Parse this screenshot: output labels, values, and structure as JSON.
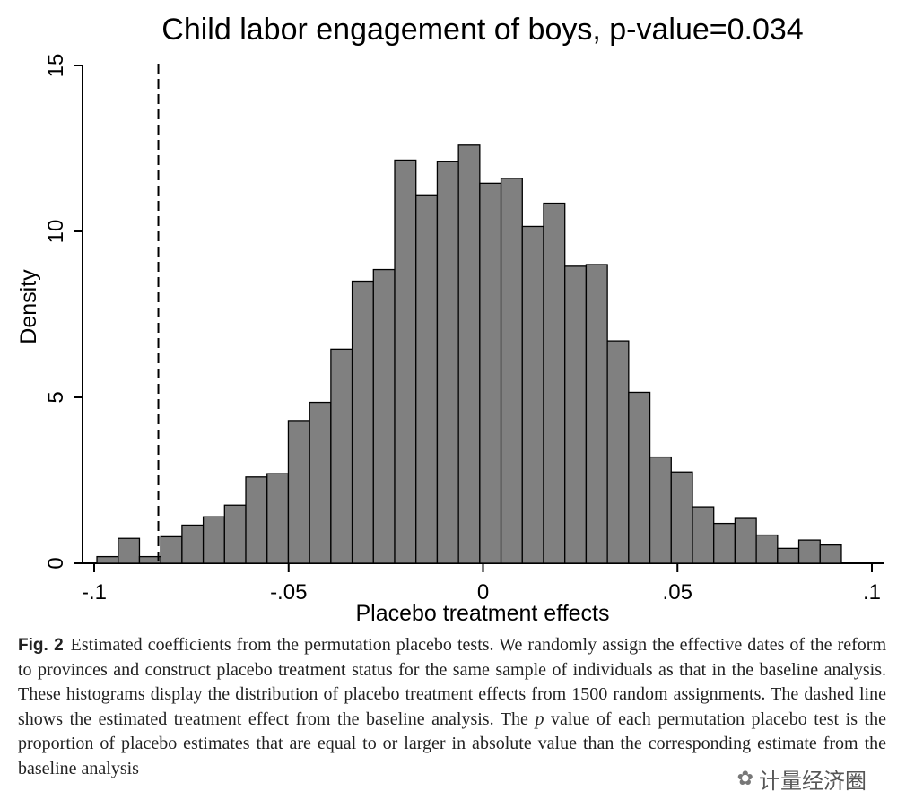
{
  "chart_data": {
    "type": "bar",
    "title": "Child labor engagement of boys, p-value=0.034",
    "xlabel": "Placebo treatment effects",
    "ylabel": "Density",
    "xlim": [
      -0.103,
      0.103
    ],
    "ylim": [
      0,
      15
    ],
    "xticks": [
      {
        "value": -0.1,
        "label": "-.1"
      },
      {
        "value": -0.05,
        "label": "-.05"
      },
      {
        "value": 0,
        "label": "0"
      },
      {
        "value": 0.05,
        "label": ".05"
      },
      {
        "value": 0.1,
        "label": ".1"
      }
    ],
    "yticks": [
      {
        "value": 0,
        "label": "0"
      },
      {
        "value": 5,
        "label": "5"
      },
      {
        "value": 10,
        "label": "10"
      },
      {
        "value": 15,
        "label": "15"
      }
    ],
    "bin_start": -0.0993,
    "bin_width": 0.00547,
    "values": [
      0.2,
      0.75,
      0.2,
      0.8,
      1.15,
      1.4,
      1.75,
      2.6,
      2.7,
      4.3,
      4.85,
      6.45,
      8.5,
      8.85,
      12.15,
      11.1,
      12.1,
      12.6,
      11.45,
      11.6,
      10.15,
      10.85,
      8.95,
      9.0,
      6.7,
      5.15,
      3.2,
      2.75,
      1.7,
      1.2,
      1.35,
      0.85,
      0.45,
      0.7,
      0.55
    ],
    "reference_line": {
      "x": -0.0835,
      "style": "dashed"
    },
    "bar_color": "#808080",
    "bar_edge_color": "#000000"
  },
  "caption": {
    "fig_label": "Fig. 2",
    "text_part1": "Estimated coefficients from the permutation placebo tests. We randomly assign the effective dates of the reform to provinces and construct placebo treatment status for the same sample of individuals as that in the baseline analysis. These histograms display the distribution of placebo treatment effects from 1500 random assignments. The dashed line shows the estimated treatment effect from the baseline analysis. The ",
    "p_italic": "p",
    "text_part2": " value of each permutation placebo test is the proportion of placebo estimates that are equal to or larger in absolute value than the corresponding estimate from the baseline analysis"
  },
  "watermark": {
    "icon": "wechat-icon",
    "text": "计量经济圈"
  }
}
